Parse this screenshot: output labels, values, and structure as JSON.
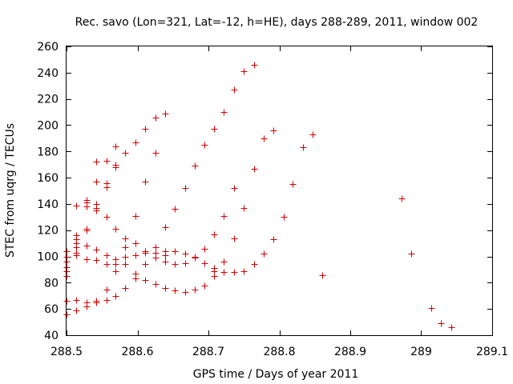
{
  "chart_data": {
    "type": "scatter",
    "title": "Rec. savo (Lon=321, Lat=-12, h=HE), days 288-289, 2011, window 002",
    "xlabel": "GPS time / Days of year 2011",
    "ylabel": "STEC from uqrg / TECUs",
    "xlim": [
      288.5,
      289.1
    ],
    "ylim": [
      40,
      260
    ],
    "xticks": [
      "288.5",
      "288.6",
      "288.7",
      "288.8",
      "288.9",
      "289",
      "289.1"
    ],
    "xtick_values": [
      288.5,
      288.6,
      288.7,
      288.8,
      288.9,
      289.0,
      289.1
    ],
    "yticks": [
      "40",
      "60",
      "80",
      "100",
      "120",
      "140",
      "160",
      "180",
      "200",
      "220",
      "240",
      "260"
    ],
    "ytick_values": [
      40,
      60,
      80,
      100,
      120,
      140,
      160,
      180,
      200,
      220,
      240,
      260
    ],
    "grid": false,
    "marker": "+",
    "marker_color": "#d00000",
    "series": [
      {
        "name": "STEC",
        "points": [
          [
            288.5,
            56
          ],
          [
            288.5,
            66
          ],
          [
            288.5,
            85
          ],
          [
            288.5,
            89
          ],
          [
            288.5,
            92
          ],
          [
            288.5,
            96
          ],
          [
            288.5,
            100
          ],
          [
            288.5,
            104
          ],
          [
            288.514,
            59
          ],
          [
            288.514,
            67
          ],
          [
            288.514,
            101
          ],
          [
            288.514,
            103
          ],
          [
            288.514,
            107
          ],
          [
            288.514,
            110
          ],
          [
            288.514,
            113
          ],
          [
            288.514,
            116
          ],
          [
            288.514,
            139
          ],
          [
            288.528,
            62
          ],
          [
            288.528,
            65
          ],
          [
            288.528,
            98
          ],
          [
            288.528,
            108
          ],
          [
            288.528,
            120
          ],
          [
            288.528,
            121
          ],
          [
            288.528,
            138
          ],
          [
            288.528,
            141
          ],
          [
            288.528,
            143
          ],
          [
            288.542,
            65
          ],
          [
            288.542,
            66
          ],
          [
            288.542,
            97
          ],
          [
            288.542,
            105
          ],
          [
            288.542,
            135
          ],
          [
            288.542,
            137
          ],
          [
            288.542,
            140
          ],
          [
            288.542,
            157
          ],
          [
            288.542,
            172
          ],
          [
            288.556,
            67
          ],
          [
            288.556,
            75
          ],
          [
            288.556,
            94
          ],
          [
            288.556,
            101
          ],
          [
            288.556,
            130
          ],
          [
            288.556,
            153
          ],
          [
            288.556,
            156
          ],
          [
            288.556,
            173
          ],
          [
            288.569,
            70
          ],
          [
            288.569,
            89
          ],
          [
            288.569,
            94
          ],
          [
            288.569,
            98
          ],
          [
            288.569,
            121
          ],
          [
            288.569,
            168
          ],
          [
            288.569,
            170
          ],
          [
            288.569,
            184
          ],
          [
            288.583,
            76
          ],
          [
            288.583,
            94
          ],
          [
            288.583,
            100
          ],
          [
            288.583,
            107
          ],
          [
            288.583,
            114
          ],
          [
            288.583,
            179
          ],
          [
            288.597,
            83
          ],
          [
            288.597,
            87
          ],
          [
            288.597,
            101
          ],
          [
            288.597,
            110
          ],
          [
            288.597,
            131
          ],
          [
            288.597,
            187
          ],
          [
            288.611,
            82
          ],
          [
            288.611,
            94
          ],
          [
            288.611,
            103
          ],
          [
            288.611,
            104
          ],
          [
            288.611,
            157
          ],
          [
            288.611,
            197
          ],
          [
            288.625,
            79
          ],
          [
            288.625,
            99
          ],
          [
            288.625,
            103
          ],
          [
            288.625,
            107
          ],
          [
            288.625,
            179
          ],
          [
            288.625,
            206
          ],
          [
            288.639,
            76
          ],
          [
            288.639,
            96
          ],
          [
            288.639,
            101
          ],
          [
            288.639,
            104
          ],
          [
            288.639,
            122
          ],
          [
            288.639,
            209
          ],
          [
            288.653,
            74
          ],
          [
            288.653,
            94
          ],
          [
            288.653,
            104
          ],
          [
            288.653,
            136
          ],
          [
            288.667,
            73
          ],
          [
            288.667,
            95
          ],
          [
            288.667,
            102
          ],
          [
            288.667,
            152
          ],
          [
            288.681,
            75
          ],
          [
            288.681,
            99
          ],
          [
            288.681,
            100
          ],
          [
            288.681,
            169
          ],
          [
            288.694,
            78
          ],
          [
            288.694,
            95
          ],
          [
            288.694,
            106
          ],
          [
            288.694,
            185
          ],
          [
            288.708,
            85
          ],
          [
            288.708,
            89
          ],
          [
            288.708,
            91
          ],
          [
            288.708,
            117
          ],
          [
            288.708,
            197
          ],
          [
            288.722,
            88
          ],
          [
            288.722,
            96
          ],
          [
            288.722,
            131
          ],
          [
            288.722,
            210
          ],
          [
            288.736,
            88
          ],
          [
            288.736,
            114
          ],
          [
            288.736,
            152
          ],
          [
            288.736,
            227
          ],
          [
            288.75,
            89
          ],
          [
            288.75,
            137
          ],
          [
            288.75,
            241
          ],
          [
            288.764,
            94
          ],
          [
            288.764,
            167
          ],
          [
            288.764,
            246
          ],
          [
            288.778,
            102
          ],
          [
            288.778,
            190
          ],
          [
            288.792,
            113
          ],
          [
            288.792,
            196
          ],
          [
            288.806,
            130
          ],
          [
            288.819,
            155
          ],
          [
            288.833,
            183
          ],
          [
            288.847,
            193
          ],
          [
            288.861,
            86
          ],
          [
            288.972,
            144
          ],
          [
            288.986,
            102
          ],
          [
            289.014,
            61
          ],
          [
            289.028,
            49
          ],
          [
            289.042,
            46
          ]
        ]
      }
    ]
  }
}
